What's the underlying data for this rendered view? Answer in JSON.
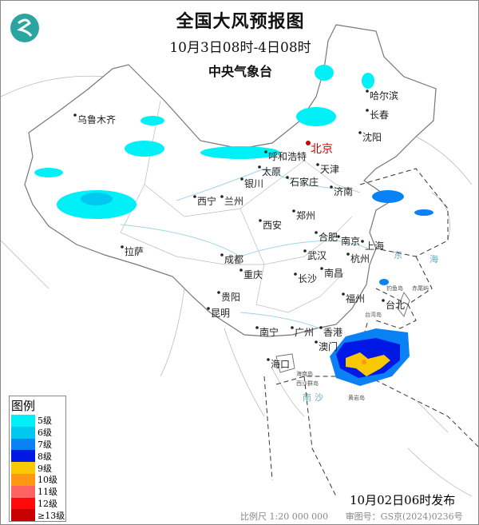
{
  "header": {
    "title": "全国大风预报图",
    "period": "10月3日08时-4日08时",
    "agency": "中央气象台"
  },
  "cities": [
    "乌鲁木齐",
    "哈尔滨",
    "长春",
    "沈阳",
    "北京",
    "天津",
    "呼和浩特",
    "太原",
    "石家庄",
    "银川",
    "济南",
    "西宁",
    "兰州",
    "郑州",
    "西安",
    "合肥",
    "南京",
    "上海",
    "杭州",
    "拉萨",
    "成都",
    "武汉",
    "重庆",
    "长沙",
    "南昌",
    "福州",
    "台北",
    "贵阳",
    "昆明",
    "南宁",
    "广州",
    "香港",
    "澳门",
    "海口"
  ],
  "small_labels": [
    "东",
    "海",
    "钓鱼岛",
    "赤尾屿",
    "台湾岛",
    "海南岛",
    "西沙群岛",
    "南",
    "沙",
    "黄岩岛"
  ],
  "legend": {
    "title": "图例",
    "items": [
      {
        "label": "5级",
        "color": "#00f0f8"
      },
      {
        "label": "6级",
        "color": "#00c8f0"
      },
      {
        "label": "7级",
        "color": "#0a82f5"
      },
      {
        "label": "8级",
        "color": "#0018e6"
      },
      {
        "label": "9级",
        "color": "#fac800"
      },
      {
        "label": "10级",
        "color": "#ff9614"
      },
      {
        "label": "11级",
        "color": "#ff6464"
      },
      {
        "label": "12级",
        "color": "#ff0a0a"
      },
      {
        "label": "≥13级",
        "color": "#c80000"
      }
    ]
  },
  "issued": "10月02日06时发布",
  "footer": {
    "scale": "比例尺 1:20 000 000",
    "map_number": "审图号：GS京(2024)0236号"
  }
}
